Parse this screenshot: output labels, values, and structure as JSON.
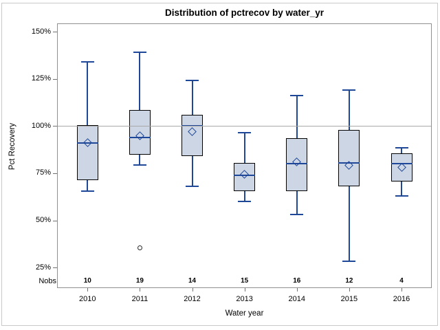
{
  "chart_data": {
    "type": "box",
    "title": "Distribution of pctrecov by water_yr",
    "xlabel": "Water year",
    "ylabel": "Pct Recovery",
    "nobs_label": "Nobs",
    "categories": [
      "2010",
      "2011",
      "2012",
      "2013",
      "2014",
      "2015",
      "2016"
    ],
    "nobs": [
      10,
      19,
      14,
      15,
      16,
      12,
      4
    ],
    "yticks": [
      {
        "label": "150%",
        "value": 150
      },
      {
        "label": "125%",
        "value": 125
      },
      {
        "label": "100%",
        "value": 100
      },
      {
        "label": "75%",
        "value": 75
      },
      {
        "label": "50%",
        "value": 50
      },
      {
        "label": "25%",
        "value": 25
      }
    ],
    "reference_line": 100,
    "legend": "none",
    "grid": "off",
    "ylim": [
      25,
      150
    ],
    "series": [
      {
        "year": "2010",
        "n": 10,
        "whisker_low": 65.5,
        "q1": 71.5,
        "median": 91,
        "q3": 100.5,
        "whisker_high": 134,
        "mean": 91.3,
        "outliers": []
      },
      {
        "year": "2011",
        "n": 19,
        "whisker_low": 79.5,
        "q1": 85,
        "median": 94,
        "q3": 108.5,
        "whisker_high": 139,
        "mean": 95,
        "outliers": [
          35.5
        ]
      },
      {
        "year": "2012",
        "n": 14,
        "whisker_low": 68,
        "q1": 84,
        "median": 100,
        "q3": 106,
        "whisker_high": 124,
        "mean": 97,
        "outliers": []
      },
      {
        "year": "2013",
        "n": 15,
        "whisker_low": 60,
        "q1": 65.5,
        "median": 74,
        "q3": 80.5,
        "whisker_high": 96.5,
        "mean": 74.3,
        "outliers": []
      },
      {
        "year": "2014",
        "n": 16,
        "whisker_low": 53,
        "q1": 65.5,
        "median": 80,
        "q3": 93.5,
        "whisker_high": 116,
        "mean": 81,
        "outliers": []
      },
      {
        "year": "2015",
        "n": 12,
        "whisker_low": 28.5,
        "q1": 68,
        "median": 80.5,
        "q3": 98,
        "whisker_high": 119,
        "mean": 79,
        "outliers": []
      },
      {
        "year": "2016",
        "n": 4,
        "whisker_low": 63,
        "q1": 70.5,
        "median": 80,
        "q3": 85.5,
        "whisker_high": 88.5,
        "mean": 78,
        "outliers": []
      }
    ],
    "colors": {
      "box_fill": "#ccd6e4",
      "box_border": "#000000",
      "whisker": "#1f4798",
      "mean_marker": "#1f4798",
      "median": "#1f4798",
      "outlier": "#2a2a2a",
      "reference_line": "#a8a8a8",
      "frame": "#8f8f8f"
    }
  }
}
